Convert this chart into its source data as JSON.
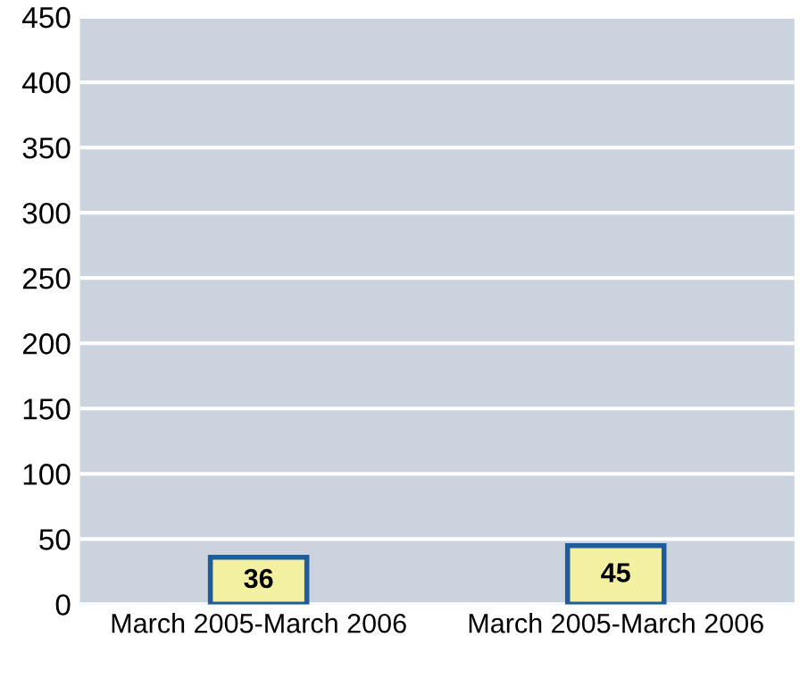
{
  "chart_data": {
    "type": "bar",
    "categories": [
      "March 2005-March 2006",
      "March 2005-March 2006"
    ],
    "values": [
      36,
      45
    ],
    "color": "#f3f0a2",
    "ylim": [
      0,
      450
    ],
    "yticks": [
      0,
      50,
      100,
      150,
      200,
      250,
      300,
      350,
      400,
      450
    ],
    "grid": "y",
    "data_labels": true
  }
}
